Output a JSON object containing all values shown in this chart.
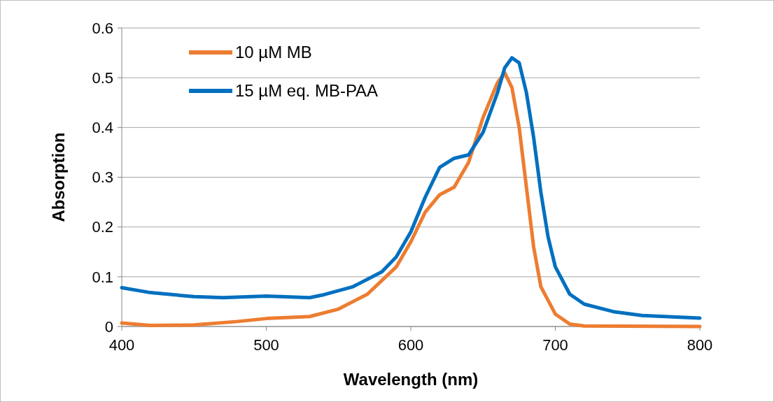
{
  "chart_data": {
    "type": "line",
    "xlabel": "Wavelength (nm)",
    "ylabel": "Absorption",
    "xlim": [
      400,
      800
    ],
    "xticks": [
      400,
      500,
      600,
      700,
      800
    ],
    "ylim": [
      0,
      0.6
    ],
    "yticks": [
      0,
      0.1,
      0.2,
      0.3,
      0.4,
      0.5,
      0.6
    ],
    "grid": "y",
    "legend": "top left",
    "marker": "none",
    "line_style": "solid",
    "series": [
      {
        "name": "10 µM MB",
        "color": "#ed7d31",
        "x": [
          400,
          420,
          450,
          480,
          500,
          530,
          550,
          570,
          590,
          600,
          610,
          620,
          630,
          640,
          650,
          660,
          665,
          670,
          675,
          680,
          685,
          690,
          700,
          710,
          720,
          800
        ],
        "values": [
          0.007,
          0.002,
          0.003,
          0.01,
          0.016,
          0.02,
          0.035,
          0.065,
          0.12,
          0.17,
          0.23,
          0.265,
          0.28,
          0.33,
          0.42,
          0.49,
          0.51,
          0.48,
          0.4,
          0.28,
          0.16,
          0.08,
          0.025,
          0.005,
          0.001,
          0
        ]
      },
      {
        "name": "15 µM eq. MB-PAA",
        "color": "#0070c0",
        "x": [
          400,
          420,
          450,
          470,
          500,
          530,
          540,
          560,
          580,
          590,
          600,
          610,
          620,
          630,
          640,
          650,
          660,
          665,
          670,
          675,
          680,
          685,
          690,
          695,
          700,
          710,
          720,
          740,
          760,
          800
        ],
        "values": [
          0.078,
          0.068,
          0.06,
          0.058,
          0.061,
          0.058,
          0.064,
          0.08,
          0.11,
          0.14,
          0.19,
          0.26,
          0.32,
          0.338,
          0.345,
          0.39,
          0.47,
          0.52,
          0.54,
          0.53,
          0.47,
          0.38,
          0.27,
          0.18,
          0.12,
          0.065,
          0.045,
          0.03,
          0.022,
          0.017
        ]
      }
    ]
  }
}
